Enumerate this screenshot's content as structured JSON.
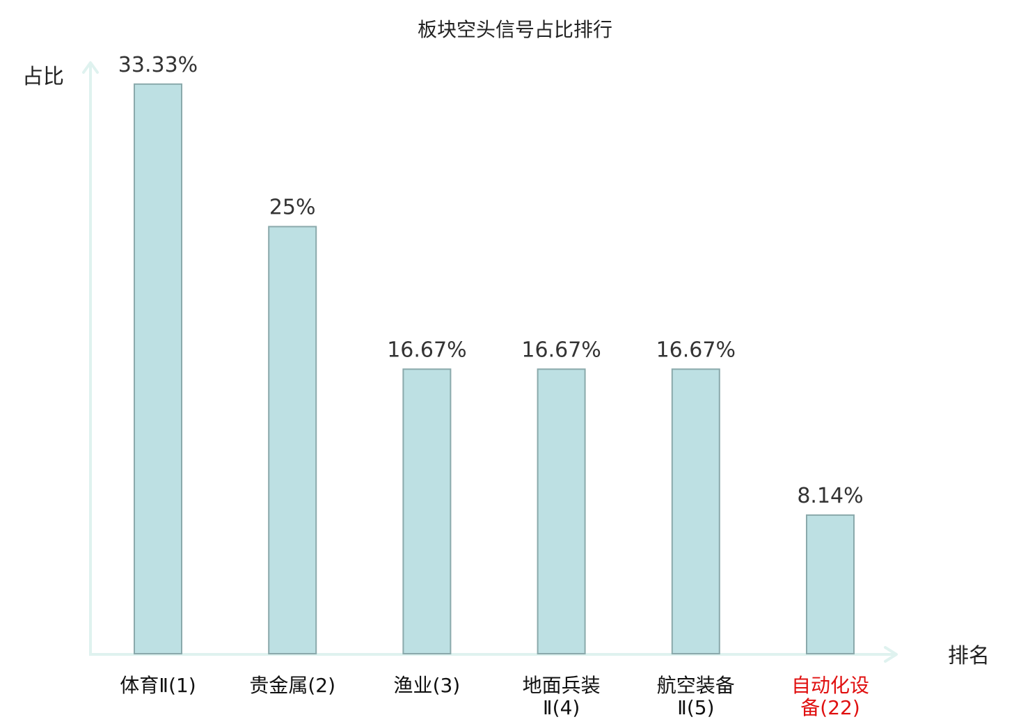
{
  "chart_data": {
    "type": "bar",
    "title": "板块空头信号占比排行",
    "ylabel": "占比",
    "xlabel": "排名",
    "ylim": [
      0,
      34.5
    ],
    "grid": false,
    "categories": [
      {
        "name_lines": [
          "体育Ⅱ"
        ],
        "rank": "(1)",
        "highlight": false
      },
      {
        "name_lines": [
          "贵金属"
        ],
        "rank": "(2)",
        "highlight": false
      },
      {
        "name_lines": [
          "渔业"
        ],
        "rank": "(3)",
        "highlight": false
      },
      {
        "name_lines": [
          "地面兵装",
          "Ⅱ"
        ],
        "rank": "(4)",
        "highlight": false
      },
      {
        "name_lines": [
          "航空装备",
          "Ⅱ"
        ],
        "rank": "(5)",
        "highlight": false
      },
      {
        "name_lines": [
          "自动化设",
          "备"
        ],
        "rank": "(22)",
        "highlight": true
      }
    ],
    "values": [
      33.33,
      25,
      16.67,
      16.67,
      16.67,
      8.14
    ],
    "value_labels": [
      "33.33%",
      "25%",
      "16.67%",
      "16.67%",
      "16.67%",
      "8.14%"
    ],
    "colors": {
      "bar_fill": "#bde0e3",
      "bar_stroke": "#8aa9ab",
      "axis": "#dff2ef",
      "highlight_text": "#e01010",
      "normal_text": "#111111"
    }
  }
}
